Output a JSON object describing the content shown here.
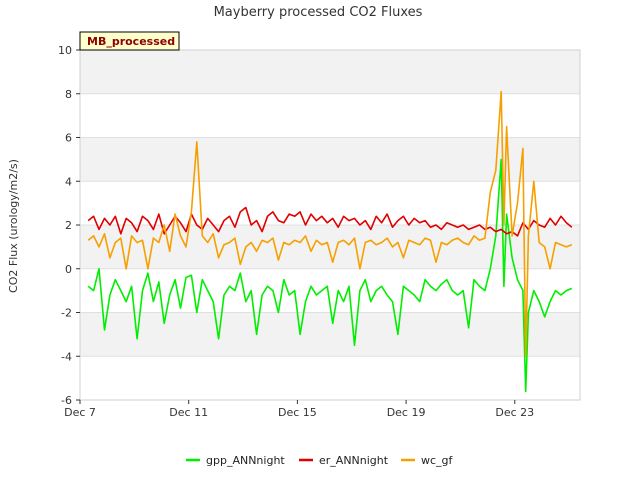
{
  "chart_data": {
    "type": "line",
    "title": "Mayberry processed CO2 Fluxes",
    "tag": "MB_processed",
    "xlabel": "",
    "ylabel": "CO2 Flux (urology/m2/s)",
    "ylim": [
      -6,
      10
    ],
    "yticks": [
      -6,
      -4,
      -2,
      0,
      2,
      4,
      6,
      8,
      10
    ],
    "xlim": [
      7.0,
      25.4
    ],
    "xticks": [
      {
        "pos": 7,
        "label": "Dec 7"
      },
      {
        "pos": 11,
        "label": "Dec 11"
      },
      {
        "pos": 15,
        "label": "Dec 15"
      },
      {
        "pos": 19,
        "label": "Dec 19"
      },
      {
        "pos": 23,
        "label": "Dec 23"
      }
    ],
    "grid": "horizontal bands",
    "legend_position": "bottom",
    "series": [
      {
        "name": "gpp_ANNnight",
        "color": "#00ee00",
        "x": [
          7.3,
          7.5,
          7.7,
          7.9,
          8.1,
          8.3,
          8.5,
          8.7,
          8.9,
          9.1,
          9.3,
          9.5,
          9.7,
          9.9,
          10.1,
          10.3,
          10.5,
          10.7,
          10.9,
          11.1,
          11.3,
          11.5,
          11.7,
          11.9,
          12.1,
          12.3,
          12.5,
          12.7,
          12.9,
          13.1,
          13.3,
          13.5,
          13.7,
          13.9,
          14.1,
          14.3,
          14.5,
          14.7,
          14.9,
          15.1,
          15.3,
          15.5,
          15.7,
          15.9,
          16.1,
          16.3,
          16.5,
          16.7,
          16.9,
          17.1,
          17.3,
          17.5,
          17.7,
          17.9,
          18.1,
          18.3,
          18.5,
          18.7,
          18.9,
          19.1,
          19.3,
          19.5,
          19.7,
          19.9,
          20.1,
          20.3,
          20.5,
          20.7,
          20.9,
          21.1,
          21.3,
          21.5,
          21.7,
          21.9,
          22.1,
          22.3,
          22.5,
          22.6,
          22.7,
          22.9,
          23.1,
          23.3,
          23.4,
          23.5,
          23.7,
          23.9,
          24.1,
          24.3,
          24.5,
          24.7,
          24.9,
          25.1
        ],
        "y": [
          -0.8,
          -1.0,
          0.0,
          -2.8,
          -1.2,
          -0.5,
          -1.0,
          -1.5,
          -0.8,
          -3.2,
          -1.0,
          -0.2,
          -1.5,
          -0.6,
          -2.5,
          -1.2,
          -0.5,
          -1.8,
          -0.4,
          -0.3,
          -2.0,
          -0.5,
          -1.0,
          -1.5,
          -3.2,
          -1.2,
          -0.8,
          -1.0,
          -0.2,
          -1.5,
          -1.0,
          -3.0,
          -1.2,
          -0.8,
          -1.0,
          -2.0,
          -0.5,
          -1.2,
          -1.0,
          -3.0,
          -1.5,
          -0.8,
          -1.2,
          -1.0,
          -0.8,
          -2.5,
          -1.0,
          -1.5,
          -0.8,
          -3.5,
          -1.0,
          -0.5,
          -1.5,
          -1.0,
          -0.8,
          -1.2,
          -1.5,
          -3.0,
          -0.8,
          -1.0,
          -1.2,
          -1.5,
          -0.5,
          -0.8,
          -1.0,
          -0.7,
          -0.5,
          -1.0,
          -1.2,
          -1.0,
          -2.7,
          -0.5,
          -0.8,
          -1.0,
          0.0,
          1.5,
          5.0,
          -0.8,
          2.5,
          0.5,
          -0.5,
          -1.0,
          -5.6,
          -2.0,
          -1.0,
          -1.5,
          -2.2,
          -1.5,
          -1.0,
          -1.2,
          -1.0,
          -0.9
        ]
      },
      {
        "name": "er_ANNnight",
        "color": "#e00000",
        "x": [
          7.3,
          7.5,
          7.7,
          7.9,
          8.1,
          8.3,
          8.5,
          8.7,
          8.9,
          9.1,
          9.3,
          9.5,
          9.7,
          9.9,
          10.1,
          10.3,
          10.5,
          10.7,
          10.9,
          11.1,
          11.3,
          11.5,
          11.7,
          11.9,
          12.1,
          12.3,
          12.5,
          12.7,
          12.9,
          13.1,
          13.3,
          13.5,
          13.7,
          13.9,
          14.1,
          14.3,
          14.5,
          14.7,
          14.9,
          15.1,
          15.3,
          15.5,
          15.7,
          15.9,
          16.1,
          16.3,
          16.5,
          16.7,
          16.9,
          17.1,
          17.3,
          17.5,
          17.7,
          17.9,
          18.1,
          18.3,
          18.5,
          18.7,
          18.9,
          19.1,
          19.3,
          19.5,
          19.7,
          19.9,
          20.1,
          20.3,
          20.5,
          20.7,
          20.9,
          21.1,
          21.3,
          21.5,
          21.7,
          21.9,
          22.1,
          22.3,
          22.5,
          22.7,
          22.9,
          23.1,
          23.3,
          23.5,
          23.7,
          23.9,
          24.1,
          24.3,
          24.5,
          24.7,
          24.9,
          25.1
        ],
        "y": [
          2.2,
          2.4,
          1.8,
          2.3,
          2.0,
          2.4,
          1.6,
          2.3,
          2.1,
          1.7,
          2.4,
          2.2,
          1.8,
          2.5,
          1.6,
          2.0,
          2.4,
          2.1,
          1.7,
          2.5,
          2.0,
          1.8,
          2.3,
          2.0,
          1.7,
          2.2,
          2.4,
          1.9,
          2.6,
          2.8,
          2.0,
          2.2,
          1.7,
          2.4,
          2.6,
          2.2,
          2.1,
          2.5,
          2.4,
          2.6,
          2.0,
          2.5,
          2.2,
          2.4,
          2.1,
          2.3,
          1.9,
          2.4,
          2.2,
          2.3,
          2.0,
          2.2,
          1.8,
          2.4,
          2.1,
          2.5,
          1.9,
          2.2,
          2.4,
          2.0,
          2.3,
          2.1,
          2.2,
          1.9,
          2.0,
          1.8,
          2.1,
          2.0,
          1.9,
          2.0,
          1.8,
          1.9,
          2.0,
          1.8,
          1.9,
          1.7,
          1.8,
          1.6,
          1.7,
          1.5,
          2.1,
          1.8,
          2.2,
          2.0,
          1.9,
          2.3,
          2.0,
          2.4,
          2.1,
          1.9
        ]
      },
      {
        "name": "wc_gf",
        "color": "#f5a000",
        "x": [
          7.3,
          7.5,
          7.7,
          7.9,
          8.1,
          8.3,
          8.5,
          8.7,
          8.9,
          9.1,
          9.3,
          9.5,
          9.7,
          9.9,
          10.1,
          10.3,
          10.5,
          10.7,
          10.9,
          11.1,
          11.3,
          11.5,
          11.7,
          11.9,
          12.1,
          12.3,
          12.5,
          12.7,
          12.9,
          13.1,
          13.3,
          13.5,
          13.7,
          13.9,
          14.1,
          14.3,
          14.5,
          14.7,
          14.9,
          15.1,
          15.3,
          15.5,
          15.7,
          15.9,
          16.1,
          16.3,
          16.5,
          16.7,
          16.9,
          17.1,
          17.3,
          17.5,
          17.7,
          17.9,
          18.1,
          18.3,
          18.5,
          18.7,
          18.9,
          19.1,
          19.3,
          19.5,
          19.7,
          19.9,
          20.1,
          20.3,
          20.5,
          20.7,
          20.9,
          21.1,
          21.3,
          21.5,
          21.7,
          21.9,
          22.1,
          22.3,
          22.5,
          22.6,
          22.7,
          22.9,
          23.1,
          23.3,
          23.4,
          23.5,
          23.7,
          23.9,
          24.1,
          24.3,
          24.5,
          24.7,
          24.9,
          25.1
        ],
        "y": [
          1.3,
          1.5,
          1.0,
          1.6,
          0.5,
          1.2,
          1.4,
          0.0,
          1.5,
          1.2,
          1.3,
          0.0,
          1.4,
          1.2,
          2.0,
          0.8,
          2.5,
          1.5,
          1.0,
          2.6,
          5.8,
          1.5,
          1.2,
          1.6,
          0.5,
          1.1,
          1.2,
          1.4,
          0.2,
          1.0,
          1.2,
          0.8,
          1.3,
          1.2,
          1.4,
          0.4,
          1.2,
          1.1,
          1.3,
          1.2,
          1.5,
          0.8,
          1.3,
          1.1,
          1.2,
          0.3,
          1.2,
          1.3,
          1.1,
          1.4,
          0.0,
          1.2,
          1.3,
          1.1,
          1.2,
          1.4,
          1.0,
          1.2,
          0.5,
          1.3,
          1.2,
          1.1,
          1.4,
          1.3,
          0.3,
          1.2,
          1.1,
          1.3,
          1.4,
          1.2,
          1.1,
          1.5,
          1.3,
          1.4,
          3.5,
          4.5,
          8.1,
          2.0,
          6.5,
          1.5,
          3.0,
          5.5,
          -4.0,
          1.5,
          4.0,
          1.2,
          1.0,
          0.0,
          1.2,
          1.1,
          1.0,
          1.1
        ]
      }
    ]
  }
}
